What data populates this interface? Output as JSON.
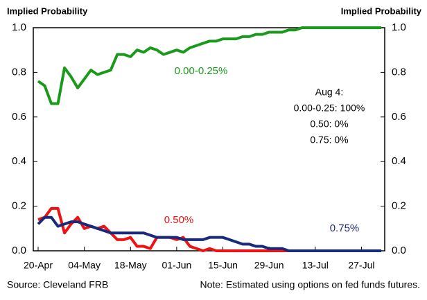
{
  "chart_data": {
    "type": "line",
    "y_label_left": "Implied Probability",
    "y_label_right": "Implied Probability",
    "categories": [
      "20-Apr",
      null,
      null,
      null,
      null,
      null,
      null,
      "04-May",
      null,
      null,
      null,
      null,
      null,
      null,
      "18-May",
      null,
      null,
      null,
      null,
      null,
      null,
      "01-Jun",
      null,
      null,
      null,
      null,
      null,
      null,
      "15-Jun",
      null,
      null,
      null,
      null,
      null,
      null,
      "29-Jun",
      null,
      null,
      null,
      null,
      null,
      null,
      "13-Jul",
      null,
      null,
      null,
      null,
      null,
      null,
      "27-Jul",
      null,
      null,
      null
    ],
    "series": [
      {
        "name": "0.00-0.25%",
        "color": "#1a9a1a",
        "values": [
          0.76,
          0.74,
          0.66,
          0.66,
          0.82,
          0.78,
          0.73,
          0.77,
          0.81,
          0.79,
          0.8,
          0.81,
          0.88,
          0.88,
          0.87,
          0.9,
          0.89,
          0.91,
          0.9,
          0.88,
          0.89,
          0.9,
          0.89,
          0.91,
          0.92,
          0.93,
          0.94,
          0.94,
          0.95,
          0.95,
          0.95,
          0.96,
          0.96,
          0.97,
          0.97,
          0.98,
          0.98,
          0.98,
          0.99,
          0.99,
          1,
          1,
          1,
          1,
          1,
          1,
          1,
          1,
          1,
          1,
          1,
          1,
          1
        ]
      },
      {
        "name": "0.50%",
        "color": "#ee1111",
        "values": [
          0.14,
          0.15,
          0.19,
          0.19,
          0.08,
          0.12,
          0.15,
          0.1,
          0.11,
          0.1,
          0.11,
          0.08,
          0.05,
          0.05,
          0.06,
          0.02,
          0.02,
          0.01,
          0.06,
          0.06,
          0.06,
          0.05,
          0.06,
          0.02,
          0.01,
          0,
          0.01,
          0,
          0,
          0,
          0,
          0,
          0,
          0,
          0,
          0,
          0,
          0,
          0,
          0,
          0,
          0,
          0,
          0,
          0,
          0,
          0,
          0,
          0,
          0,
          0,
          0,
          0
        ]
      },
      {
        "name": "0.75%",
        "color": "#1a2a7a",
        "values": [
          0.12,
          0.15,
          0.15,
          0.11,
          0.12,
          0.13,
          0.13,
          0.12,
          0.11,
          0.1,
          0.09,
          0.08,
          0.08,
          0.08,
          0.08,
          0.08,
          0.08,
          0.07,
          0.06,
          0.06,
          0.06,
          0.06,
          0.05,
          0.05,
          0.05,
          0.05,
          0.06,
          0.06,
          0.06,
          0.05,
          0.04,
          0.03,
          0.03,
          0.02,
          0.02,
          0.01,
          0.01,
          0.01,
          0,
          0,
          0,
          0,
          0,
          0,
          0,
          0,
          0,
          0,
          0,
          0,
          0,
          0,
          0
        ]
      }
    ],
    "ylim": [
      0,
      1
    ],
    "yticks": [
      {
        "value": 0,
        "label": "0.0"
      },
      0.2,
      0.4,
      0.6,
      0.8,
      {
        "value": 1,
        "label": "1.0"
      }
    ],
    "y2lim": [
      0,
      1
    ],
    "y2ticks": [
      {
        "value": 0,
        "label": "0.0"
      },
      0.2,
      0.4,
      0.6,
      0.8,
      {
        "value": 1,
        "label": "1.0"
      }
    ],
    "annotations": [
      "Aug 4:",
      "0.00-0.25: 100%",
      "0.50: 0%",
      "0.75: 0%"
    ],
    "source": "Source: Cleveland FRB",
    "note": "Note: Estimated using options on fed funds futures."
  }
}
